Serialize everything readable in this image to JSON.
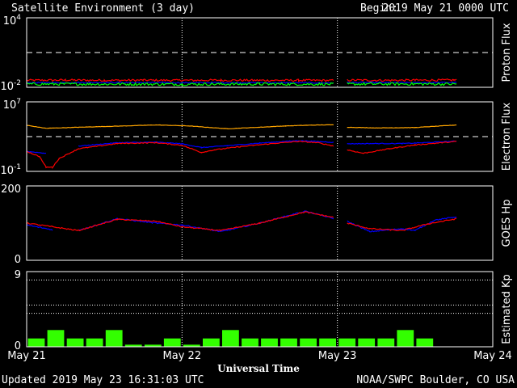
{
  "header": {
    "title": "Satellite Environment (3 day)",
    "begin_label": "Begin:",
    "begin_value": "2019 May 21 0000 UTC"
  },
  "footer": {
    "updated": "Updated 2019 May 23 16:31:03 UTC",
    "credit": "NOAA/SWPC Boulder, CO USA"
  },
  "colors": {
    "background": "#000000",
    "frame": "#ffffff",
    "red": "#ff0000",
    "blue": "#0000ff",
    "green": "#00ff00",
    "orange": "#ffa500",
    "kp_bar": "#33ff00"
  },
  "chart_data": [
    {
      "type": "line",
      "name": "proton-flux",
      "ylabel": "Proton Flux",
      "yscale": "log",
      "ylim": [
        0.01,
        10000
      ],
      "ytick_labels": [
        {
          "base": "10",
          "exp": "4"
        },
        {
          "base": "10",
          "exp": "-2"
        }
      ],
      "threshold": 10,
      "series": [
        {
          "color": "red",
          "noise": 0.09,
          "points": [
            [
              0,
              0.04
            ],
            [
              6,
              0.042
            ],
            [
              12,
              0.04
            ],
            [
              18,
              0.041
            ],
            [
              24,
              0.04
            ],
            [
              30,
              0.041
            ],
            [
              36,
              0.04
            ],
            [
              42,
              0.04
            ],
            [
              47.5,
              0.039
            ],
            [
              48.5,
              null
            ],
            [
              49.5,
              0.042
            ],
            [
              54,
              0.04
            ],
            [
              60,
              0.041
            ],
            [
              66,
              0.042
            ],
            [
              66.5,
              0.042
            ]
          ]
        },
        {
          "color": "blue",
          "noise": 0.05,
          "points": [
            [
              0,
              0.025
            ],
            [
              12,
              0.026
            ],
            [
              24,
              0.025
            ],
            [
              36,
              0.025
            ],
            [
              47.5,
              0.024
            ],
            [
              48.5,
              null
            ],
            [
              49.5,
              0.026
            ],
            [
              60,
              0.025
            ],
            [
              66.5,
              0.026
            ]
          ]
        },
        {
          "color": "green",
          "noise": 0.12,
          "points": [
            [
              0,
              0.019
            ],
            [
              12,
              0.019
            ],
            [
              24,
              0.0185
            ],
            [
              36,
              0.019
            ],
            [
              47.5,
              0.0185
            ],
            [
              48.5,
              null
            ],
            [
              49.5,
              0.019
            ],
            [
              60,
              0.0195
            ],
            [
              66.5,
              0.019
            ]
          ]
        }
      ]
    },
    {
      "type": "line",
      "name": "electron-flux",
      "ylabel": "Electron Flux",
      "yscale": "log",
      "ylim": [
        0.1,
        10000000
      ],
      "ytick_labels": [
        {
          "base": "10",
          "exp": "7"
        },
        {
          "base": "10",
          "exp": "-1"
        }
      ],
      "threshold": 1000,
      "series": [
        {
          "color": "orange",
          "noise": 0.02,
          "points": [
            [
              0,
              20000
            ],
            [
              3,
              9000
            ],
            [
              8,
              12000
            ],
            [
              14,
              16000
            ],
            [
              20,
              22000
            ],
            [
              25,
              17000
            ],
            [
              31,
              8000
            ],
            [
              36,
              12000
            ],
            [
              40,
              17000
            ],
            [
              44,
              21000
            ],
            [
              47.5,
              23000
            ],
            [
              48.5,
              null
            ],
            [
              49.5,
              12000
            ],
            [
              54,
              10000
            ],
            [
              60,
              11000
            ],
            [
              66.5,
              22000
            ]
          ]
        },
        {
          "color": "blue",
          "noise": 0.04,
          "points": [
            [
              0,
              20
            ],
            [
              3,
              12
            ],
            [
              4,
              null
            ],
            [
              8,
              80
            ],
            [
              14,
              200
            ],
            [
              20,
              230
            ],
            [
              24,
              150
            ],
            [
              27,
              55
            ],
            [
              31,
              90
            ],
            [
              36,
              180
            ],
            [
              42,
              350
            ],
            [
              47.5,
              220
            ],
            [
              48.5,
              null
            ],
            [
              49.5,
              150
            ],
            [
              54,
              160
            ],
            [
              58,
              160
            ],
            [
              60,
              180
            ],
            [
              66.5,
              300
            ]
          ]
        },
        {
          "color": "red",
          "noise": 0.05,
          "points": [
            [
              0,
              20
            ],
            [
              2,
              5
            ],
            [
              3,
              0.3
            ],
            [
              4,
              0.3
            ],
            [
              5,
              3
            ],
            [
              8,
              40
            ],
            [
              14,
              160
            ],
            [
              20,
              200
            ],
            [
              24,
              100
            ],
            [
              27,
              15
            ],
            [
              29,
              30
            ],
            [
              33,
              70
            ],
            [
              38,
              160
            ],
            [
              42,
              280
            ],
            [
              45,
              200
            ],
            [
              47.5,
              80
            ],
            [
              48.5,
              null
            ],
            [
              49.5,
              30
            ],
            [
              52,
              12
            ],
            [
              56,
              40
            ],
            [
              60,
              110
            ],
            [
              66.5,
              280
            ]
          ]
        }
      ]
    },
    {
      "type": "line",
      "name": "goes-hp",
      "ylabel": "GOES Hp",
      "yscale": "linear",
      "ylim": [
        0,
        200
      ],
      "ytick_labels": [
        {
          "base": "200",
          "exp": ""
        },
        {
          "base": "0",
          "exp": ""
        }
      ],
      "series": [
        {
          "color": "blue",
          "noise": 1.5,
          "points": [
            [
              0,
              95
            ],
            [
              4,
              82
            ],
            [
              5,
              null
            ],
            [
              8,
              80
            ],
            [
              14,
              112
            ],
            [
              20,
              100
            ],
            [
              24,
              95
            ],
            [
              30,
              77
            ],
            [
              36,
              100
            ],
            [
              43,
              132
            ],
            [
              47.5,
              112
            ],
            [
              48.5,
              null
            ],
            [
              49.5,
              105
            ],
            [
              53,
              77
            ],
            [
              58,
              85
            ],
            [
              60,
              80
            ],
            [
              63,
              108
            ],
            [
              66.5,
              117
            ]
          ]
        },
        {
          "color": "red",
          "noise": 1.5,
          "points": [
            [
              0,
              100
            ],
            [
              4,
              90
            ],
            [
              8,
              80
            ],
            [
              14,
              110
            ],
            [
              20,
              105
            ],
            [
              24,
              90
            ],
            [
              30,
              80
            ],
            [
              36,
              100
            ],
            [
              43,
              130
            ],
            [
              47.5,
              115
            ],
            [
              48.5,
              null
            ],
            [
              49.5,
              100
            ],
            [
              53,
              85
            ],
            [
              58,
              80
            ],
            [
              62,
              98
            ],
            [
              66.5,
              112
            ]
          ]
        }
      ]
    },
    {
      "type": "bar",
      "name": "estimated-kp",
      "ylabel": "Estimated Kp",
      "yscale": "linear",
      "ylim": [
        0,
        9
      ],
      "ytick_labels": [
        {
          "base": "9",
          "exp": ""
        },
        {
          "base": "0",
          "exp": ""
        }
      ],
      "gridlines": [
        4,
        5,
        8,
        9
      ],
      "bar_width_hours": 2.6,
      "bars": [
        [
          1.5,
          1
        ],
        [
          4.5,
          2
        ],
        [
          7.5,
          1
        ],
        [
          10.5,
          1
        ],
        [
          13.5,
          2
        ],
        [
          16.5,
          0.25
        ],
        [
          19.5,
          0.25
        ],
        [
          22.5,
          1
        ],
        [
          25.5,
          0.25
        ],
        [
          28.5,
          1
        ],
        [
          31.5,
          2
        ],
        [
          34.5,
          1
        ],
        [
          37.5,
          1
        ],
        [
          40.5,
          1
        ],
        [
          43.5,
          1
        ],
        [
          46.5,
          1
        ],
        [
          49.5,
          1
        ],
        [
          52.5,
          1
        ],
        [
          55.5,
          1
        ],
        [
          58.5,
          2
        ],
        [
          61.5,
          1
        ]
      ]
    }
  ],
  "xaxis": {
    "label": "Universal Time",
    "range_hours": [
      0,
      72
    ],
    "tick_hours": [
      0,
      24,
      48,
      72
    ],
    "tick_labels": [
      "May 21",
      "May 22",
      "May 23",
      "May 24"
    ],
    "day_boundaries": [
      24,
      48
    ]
  }
}
